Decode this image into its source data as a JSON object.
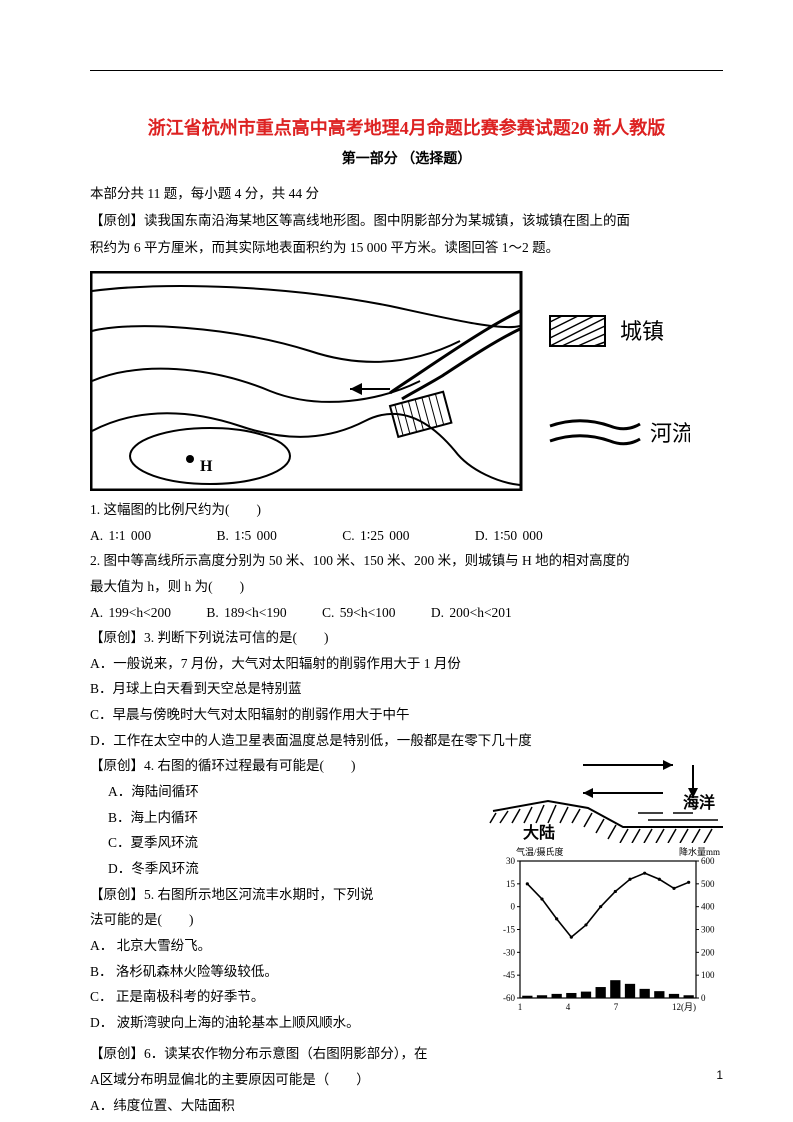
{
  "titleMain": "浙江省杭州市重点高中高考地理4月命题比赛参赛试题20 新人教版",
  "subTitle": "第一部分 （选择题）",
  "intro1": "本部分共 11 题，每小题 4 分，共 44 分",
  "intro2": "【原创】读我国东南沿海某地区等高线地形图。图中阴影部分为某城镇，该城镇在图上的面",
  "intro3": "积约为 6 平方厘米，而其实际地表面积约为 15 000 平方米。读图回答 1～2 题。",
  "mapLegend": {
    "town": "城镇",
    "river": "河流",
    "H": "H"
  },
  "q1": "1. 这幅图的比例尺约为(　　)",
  "q1opts": {
    "A": "A. 1∶1 000",
    "B": "B. 1∶5 000",
    "C": "C. 1∶25 000",
    "D": "D. 1∶50 000"
  },
  "q2": "2. 图中等高线所示高度分别为 50 米、100 米、150 米、200 米，则城镇与 H 地的相对高度的",
  "q2b": "最大值为 h，则 h 为(　　)",
  "q2opts": {
    "A": "A. 199<h<200",
    "B": "B. 189<h<190",
    "C": "C. 59<h<100",
    "D": "D. 200<h<201"
  },
  "q3": "【原创】3. 判断下列说法可信的是(　　)",
  "q3opts": {
    "A": "A．一般说来，7 月份，大气对太阳辐射的削弱作用大于 1 月份",
    "B": "B．月球上白天看到天空总是特别蓝",
    "C": "C．早晨与傍晚时大气对太阳辐射的削弱作用大于中午",
    "D": "D．工作在太空中的人造卫星表面温度总是特别低，一般都是在零下几十度"
  },
  "q4": "【原创】4. 右图的循环过程最有可能是(　　)",
  "q4opts": {
    "A": "A．海陆间循环",
    "B": "B．海上内循环",
    "C": "C．夏季风环流",
    "D": "D．冬季风环流"
  },
  "diagLabels": {
    "land": "大陆",
    "ocean": "海洋",
    "tempAxis": "气温/摄氏度",
    "precipAxis": "降水量mm"
  },
  "q5": "【原创】5. 右图所示地区河流丰水期时，下列说",
  "q5b": "法可能的是(　　)",
  "q5opts": {
    "A": "A． 北京大雪纷飞。",
    "B": "B． 洛杉矶森林火险等级较低。",
    "C": "C． 正是南极科考的好季节。",
    "D": "D． 波斯湾驶向上海的油轮基本上顺风顺水。"
  },
  "q6": "【原创】6．读某农作物分布示意图（右图阴影部分），在",
  "q6b": "A区域分布明显偏北的主要原因可能是（　　）",
  "q6opts": {
    "A": "A．纬度位置、大陆面积"
  },
  "climate": {
    "tempTicks": [
      "30",
      "15",
      "0",
      "-15",
      "-30",
      "-45",
      "-60"
    ],
    "precipTicks": [
      "600",
      "500",
      "400",
      "300",
      "200",
      "100",
      "0"
    ],
    "months": [
      "1",
      "4",
      "7",
      "12(月)"
    ],
    "tempSeries": [
      15,
      5,
      -8,
      -20,
      -12,
      0,
      10,
      18,
      22,
      18,
      12,
      16
    ],
    "precipSeries": [
      10,
      12,
      18,
      22,
      28,
      48,
      78,
      62,
      40,
      30,
      18,
      12
    ]
  },
  "pageNum": "1"
}
